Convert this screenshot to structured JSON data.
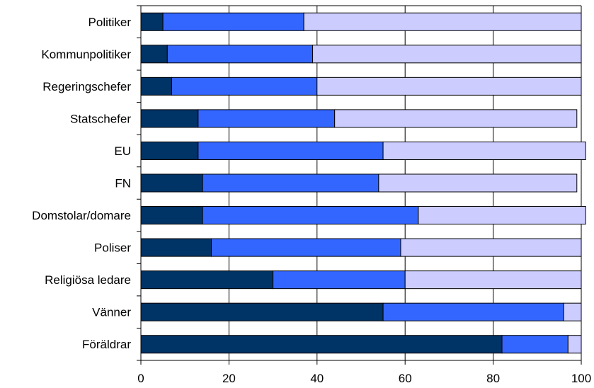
{
  "chart_data": {
    "type": "bar",
    "orientation": "horizontal",
    "stacked": true,
    "categories": [
      "Politiker",
      "Kommunpolitiker",
      "Regeringschefer",
      "Statschefer",
      "EU",
      "FN",
      "Domstolar/domare",
      "Poliser",
      "Religiösa ledare",
      "Vänner",
      "Föräldrar"
    ],
    "series": [
      {
        "values": [
          5,
          6,
          7,
          13,
          13,
          14,
          14,
          16,
          30,
          55,
          82
        ]
      },
      {
        "values": [
          32,
          33,
          33,
          31,
          42,
          40,
          49,
          43,
          30,
          41,
          15
        ]
      },
      {
        "values": [
          63,
          61,
          60,
          55,
          46,
          45,
          38,
          41,
          40,
          4,
          3
        ]
      }
    ],
    "xlim": [
      0,
      100
    ],
    "x_ticks": [
      "0",
      "20",
      "40",
      "60",
      "80",
      "100"
    ],
    "grid": "vertical",
    "legend": "none"
  },
  "colors": {
    "series": [
      "#003366",
      "#3366FF",
      "#CCCCFF"
    ]
  }
}
